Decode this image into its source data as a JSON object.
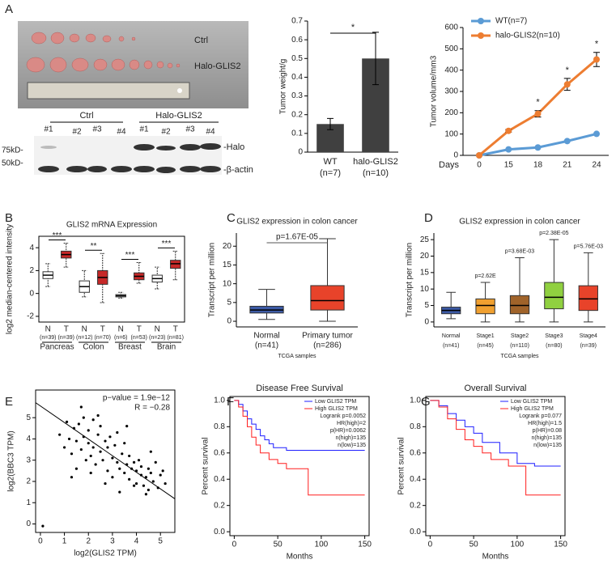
{
  "panel_labels": [
    "A",
    "B",
    "C",
    "D",
    "E",
    "F",
    "G"
  ],
  "photo": {
    "labels": [
      "Ctrl",
      "Halo-GLIS2"
    ]
  },
  "blot": {
    "groups": [
      "Ctrl",
      "Halo-GLIS2"
    ],
    "lanes": [
      "#1",
      "#2",
      "#3",
      "#4",
      "#1",
      "#2",
      "#3",
      "#4"
    ],
    "bands": [
      "-Halo",
      "-β-actin"
    ],
    "markers": [
      "75kD-",
      "50kD-"
    ]
  },
  "chart_data": [
    {
      "type": "bar",
      "ylabel": "Tumor weight/g",
      "categories": [
        "WT",
        "halo-GLIS2"
      ],
      "category_notes": [
        "(n=7)",
        "(n=10)"
      ],
      "values": [
        0.15,
        0.5
      ],
      "errors": [
        0.03,
        0.14
      ],
      "color": "#404040",
      "ylim": [
        0,
        0.7
      ],
      "yticks": [
        0,
        0.1,
        0.2,
        0.3,
        0.4,
        0.5,
        0.6,
        0.7
      ],
      "annotation": "*"
    },
    {
      "type": "line",
      "ylabel": "Tumor volume/mm3",
      "xlabel": "Days",
      "categories": [
        "0",
        "15",
        "18",
        "21",
        "24"
      ],
      "series": [
        {
          "name": "WT(n=7)",
          "color": "#5b9bd5",
          "values": [
            0,
            28,
            37,
            67,
            101
          ]
        },
        {
          "name": "halo-GLIS2(n=10)",
          "color": "#ed7d31",
          "values": [
            0,
            115,
            195,
            333,
            450
          ],
          "errors": [
            0,
            6,
            15,
            28,
            33
          ]
        }
      ],
      "ylim": [
        0,
        600
      ],
      "yticks": [
        0,
        100,
        200,
        300,
        400,
        500,
        600
      ],
      "annotations": [
        {
          "x": "18",
          "text": "*"
        },
        {
          "x": "21",
          "text": "*"
        },
        {
          "x": "24",
          "text": "*"
        }
      ]
    },
    {
      "type": "box",
      "title": "GLIS2 mRNA Expression",
      "ylabel": "log2 median-centered intensity",
      "categories": [
        "N",
        "T",
        "N",
        "T",
        "N",
        "T",
        "N",
        "T"
      ],
      "n_labels": [
        "(n=39)",
        "(n=39)",
        "(n=12)",
        "(n=70)",
        "(n=6)",
        "(n=53)",
        "(n=23)",
        "(n=81)"
      ],
      "groups": [
        "Pancreas",
        "Colon",
        "Breast",
        "Brain"
      ],
      "significance": [
        "***",
        "**",
        "***",
        "***"
      ],
      "colors": [
        "#ffffff",
        "#c62828",
        "#ffffff",
        "#c62828",
        "#ffffff",
        "#c62828",
        "#ffffff",
        "#c62828"
      ],
      "boxes": [
        {
          "min": 0.6,
          "q1": 1.3,
          "median": 1.6,
          "q3": 1.9,
          "max": 2.6
        },
        {
          "min": 2.3,
          "q1": 3.1,
          "median": 3.4,
          "q3": 3.7,
          "max": 4.4
        },
        {
          "min": -0.3,
          "q1": 0.1,
          "median": 0.6,
          "q3": 1.1,
          "max": 2.0
        },
        {
          "min": -0.8,
          "q1": 0.8,
          "median": 1.4,
          "q3": 2.0,
          "max": 3.5
        },
        {
          "min": -0.4,
          "q1": -0.3,
          "median": -0.2,
          "q3": -0.1,
          "max": 0.1
        },
        {
          "min": 0.9,
          "q1": 1.2,
          "median": 1.5,
          "q3": 1.8,
          "max": 2.7
        },
        {
          "min": 0.4,
          "q1": 1.0,
          "median": 1.3,
          "q3": 1.6,
          "max": 2.3
        },
        {
          "min": 1.2,
          "q1": 2.2,
          "median": 2.6,
          "q3": 2.9,
          "max": 3.7
        }
      ],
      "ylim": [
        -2.5,
        5
      ],
      "yticks": [
        -2,
        0,
        2,
        4
      ]
    },
    {
      "type": "box",
      "title": "GLIS2 expression in colon cancer",
      "ylabel": "Transcript per million",
      "xlabel": "TCGA samples",
      "categories": [
        "Normal",
        "Primary tumor"
      ],
      "n_labels": [
        "(n=41)",
        "(n=286)"
      ],
      "p_label": "p=1.67E-05",
      "colors": [
        "#3c5aa5",
        "#e8432a"
      ],
      "boxes": [
        {
          "min": 0.5,
          "q1": 2.2,
          "median": 3,
          "q3": 4,
          "max": 8.5
        },
        {
          "min": 0,
          "q1": 3,
          "median": 5.5,
          "q3": 9.5,
          "max": 22
        }
      ],
      "ylim": [
        -1.5,
        23.5
      ],
      "yticks": [
        0,
        5,
        10,
        15,
        20
      ]
    },
    {
      "type": "box",
      "title": "GLIS2 expression in colon cancer",
      "ylabel": "Transcript per million",
      "xlabel": "TCGA samples",
      "categories": [
        "Normal",
        "Stage1",
        "Stage2",
        "Stage3",
        "Stage4"
      ],
      "n_labels": [
        "(n=41)",
        "(n=45)",
        "(n=110)",
        "(n=80)",
        "(n=39)"
      ],
      "p_labels": [
        null,
        "p=2.62E",
        "p=3.68E-03",
        "p=2.38E-05",
        "p=5.76E-03"
      ],
      "colors": [
        "#3c5aa5",
        "#f0a030",
        "#a0632a",
        "#90d040",
        "#e8432a"
      ],
      "boxes": [
        {
          "min": 1,
          "q1": 2.5,
          "median": 3.5,
          "q3": 4.5,
          "max": 9
        },
        {
          "min": 0,
          "q1": 2.5,
          "median": 5,
          "q3": 7,
          "max": 12
        },
        {
          "min": 0,
          "q1": 2.5,
          "median": 5,
          "q3": 8,
          "max": 19.5
        },
        {
          "min": 0,
          "q1": 4,
          "median": 7.5,
          "q3": 12,
          "max": 25
        },
        {
          "min": 0,
          "q1": 3.5,
          "median": 7,
          "q3": 11,
          "max": 21
        }
      ],
      "ylim": [
        -1.5,
        27
      ],
      "yticks": [
        0,
        5,
        10,
        15,
        20,
        25
      ]
    },
    {
      "type": "scatter",
      "xlabel": "log2(GLIS2 TPM)",
      "ylabel": "log2(BBC3 TPM)",
      "annotations": [
        "p−value = 1.9e−12",
        "R = −0.28"
      ],
      "fit": {
        "slope": -0.78,
        "intercept": 5.55
      },
      "x": [
        0.8,
        1.0,
        1.1,
        1.2,
        1.3,
        1.4,
        1.5,
        1.5,
        1.6,
        1.7,
        1.8,
        1.8,
        1.9,
        2.0,
        2.0,
        2.1,
        2.2,
        2.2,
        2.3,
        2.4,
        2.5,
        2.5,
        2.6,
        2.7,
        2.8,
        2.8,
        2.9,
        3.0,
        3.0,
        3.1,
        3.2,
        3.2,
        3.3,
        3.4,
        3.5,
        3.5,
        3.6,
        3.7,
        3.7,
        3.8,
        3.9,
        4.0,
        4.0,
        4.1,
        4.2,
        4.2,
        4.3,
        4.4,
        4.5,
        4.5,
        4.6,
        4.7,
        4.8,
        4.9,
        5.0,
        5.1,
        5.2,
        1.3,
        2.1,
        2.7,
        3.3,
        3.9,
        4.4,
        0.1,
        1.7,
        2.4,
        3.6,
        4.6
      ],
      "values": [
        4.2,
        3.6,
        4.8,
        4.0,
        3.3,
        4.5,
        3.9,
        2.6,
        4.7,
        3.5,
        4.1,
        5.0,
        3.0,
        3.8,
        4.4,
        3.2,
        4.9,
        3.6,
        2.8,
        4.2,
        3.4,
        4.6,
        3.0,
        3.9,
        2.5,
        3.6,
        4.1,
        3.1,
        2.2,
        3.7,
        2.9,
        4.3,
        2.6,
        3.3,
        2.4,
        3.8,
        2.8,
        2.1,
        3.2,
        2.6,
        2.9,
        1.9,
        2.5,
        3.0,
        2.3,
        2.7,
        1.8,
        2.2,
        2.6,
        1.6,
        2.4,
        2.0,
        2.9,
        1.7,
        2.3,
        2.5,
        1.9,
        2.2,
        2.4,
        1.9,
        1.5,
        1.8,
        1.4,
        -0.1,
        5.5,
        5.1,
        4.6,
        3.4
      ],
      "xlim": [
        -0.2,
        5.6
      ],
      "ylim": [
        -0.4,
        6.3
      ],
      "xticks": [
        0,
        1,
        2,
        3,
        4,
        5
      ],
      "yticks": [
        0,
        1,
        2,
        3,
        4,
        5
      ]
    },
    {
      "type": "survival",
      "title": "Disease Free Survival",
      "xlabel": "Months",
      "ylabel": "Percent survival",
      "stats": [
        "Logrank p=0.0052",
        "HR(high)=2",
        "p(HR)=0.0062",
        "n(high)=135",
        "n(low)=135"
      ],
      "series": [
        {
          "name": "Low GLIS2 TPM",
          "color": "#1f1fff",
          "x": [
            0,
            5,
            10,
            15,
            20,
            25,
            30,
            35,
            40,
            45,
            60,
            90,
            150
          ],
          "values": [
            1,
            0.97,
            0.92,
            0.86,
            0.82,
            0.78,
            0.73,
            0.7,
            0.67,
            0.64,
            0.62,
            0.62,
            0.62
          ]
        },
        {
          "name": "High GLIS2 TPM",
          "color": "#ff1f1f",
          "x": [
            0,
            5,
            10,
            15,
            20,
            25,
            30,
            40,
            50,
            60,
            85,
            150
          ],
          "values": [
            1,
            0.95,
            0.88,
            0.8,
            0.72,
            0.66,
            0.6,
            0.55,
            0.52,
            0.48,
            0.28,
            0.28
          ]
        }
      ],
      "xlim": [
        -5,
        155
      ],
      "ylim": [
        -0.03,
        1.03
      ],
      "xticks": [
        0,
        50,
        100,
        150
      ],
      "yticks": [
        {
          "value": 0,
          "label": "0.0"
        },
        0.2,
        0.4,
        0.6,
        0.8,
        {
          "value": 1,
          "label": "1.0"
        }
      ]
    },
    {
      "type": "survival",
      "title": "Overall Survival",
      "xlabel": "Months",
      "ylabel": "Percent survival",
      "stats": [
        "Logrank p=0.077",
        "HR(high)=1.5",
        "p(HR)=0.08",
        "n(high)=135",
        "n(low)=135"
      ],
      "series": [
        {
          "name": "Low GLIS2 TPM",
          "color": "#1f1fff",
          "x": [
            0,
            10,
            20,
            30,
            40,
            50,
            60,
            80,
            100,
            120,
            150
          ],
          "values": [
            1,
            0.96,
            0.9,
            0.85,
            0.8,
            0.75,
            0.68,
            0.6,
            0.52,
            0.5,
            0.5
          ]
        },
        {
          "name": "High GLIS2 TPM",
          "color": "#ff1f1f",
          "x": [
            0,
            10,
            20,
            30,
            40,
            50,
            60,
            70,
            90,
            110,
            150
          ],
          "values": [
            1,
            0.95,
            0.86,
            0.78,
            0.7,
            0.65,
            0.6,
            0.55,
            0.5,
            0.28,
            0.28
          ]
        }
      ],
      "xlim": [
        -5,
        155
      ],
      "ylim": [
        -0.03,
        1.03
      ],
      "xticks": [
        0,
        50,
        100,
        150
      ],
      "yticks": [
        {
          "value": 0,
          "label": "0.0"
        },
        0.2,
        0.4,
        0.6,
        0.8,
        {
          "value": 1,
          "label": "1.0"
        }
      ]
    }
  ]
}
